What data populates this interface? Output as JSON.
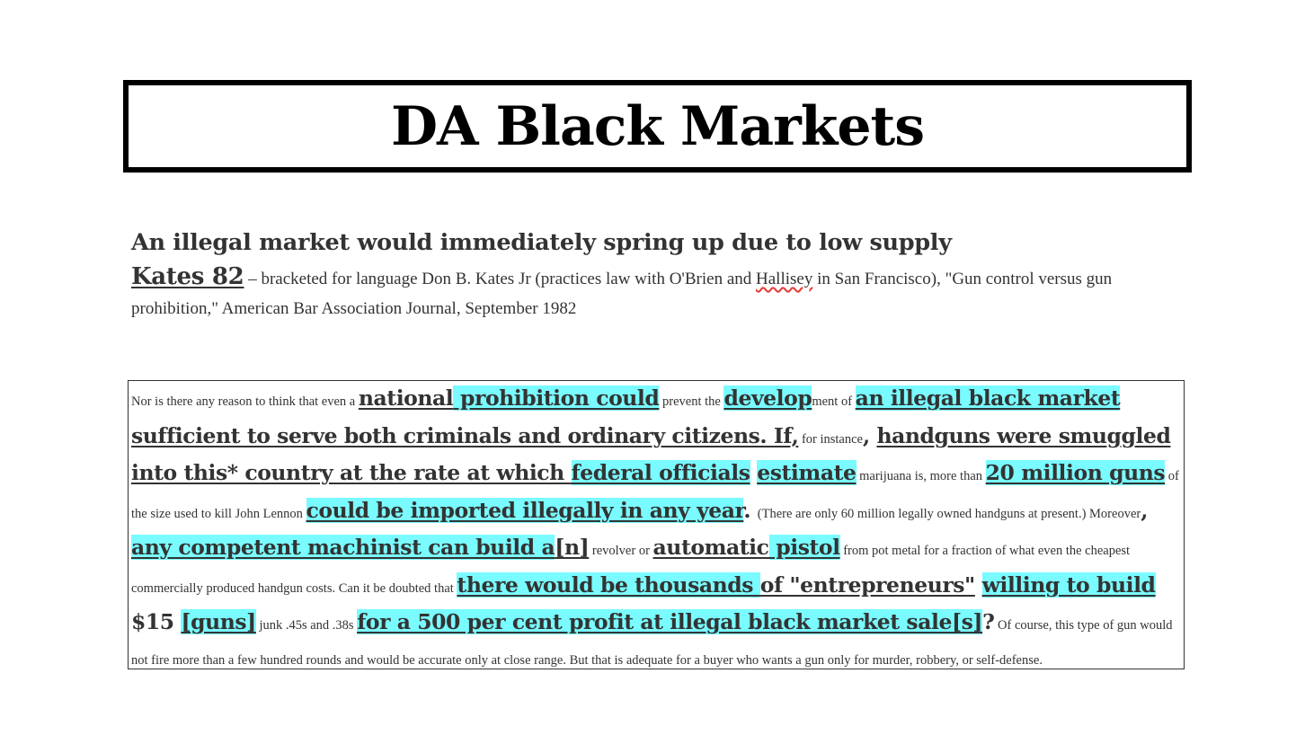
{
  "title": "DA Black Markets",
  "tag": "An illegal market would immediately spring up due to low supply",
  "citation": {
    "name": "Kates 82",
    "pre": " – bracketed for language Don B. Kates Jr (practices law with O'Brien and ",
    "misspelled": "Hallisey",
    "post": " in San Francisco), \"Gun control versus gun prohibition,\" American Bar Association Journal, September 1982"
  },
  "card": {
    "p1": "Nor is there any reason to think that even a ",
    "p2": "national",
    "p3": " prohibition could",
    "p4": " prevent the ",
    "p5": "develop",
    "p6": "ment of ",
    "p7": "an illegal black market ",
    "p8": "sufficient to serve both criminals and ordinary citizens. If,",
    "p9": " for instance",
    "p10": ", ",
    "p11": "handguns were smuggled into this* country at the rate at which ",
    "p12": "federal officials",
    "p13": " ",
    "p14": "estimate",
    "p15": " marijuana is, more than ",
    "p16": "20 million guns",
    "p17": " of the size used to kill John Lennon ",
    "p18": "could be imported illegally in any year",
    "p19": ". ",
    "p20": " (There are only 60 million legally owned handguns at present.) Moreover",
    "p21": ", ",
    "p22": "any competent machinist can build a",
    "p23": "[n]",
    "p24": " revolver or ",
    "p25": "automatic",
    "p26": " pistol",
    "p27": " from pot metal for a fraction of what even the cheapest commercially produced handgun costs. Can it be doubted that ",
    "p28": "there would be thousands ",
    "p29": "of \"entrepreneurs\"",
    "p30": " ",
    "p31": "willing to build ",
    "p32": "$15 ",
    "p33": "[guns]",
    "p34": " junk .45s and .38s ",
    "p35": "for a 500 per cent profit at illegal black market sale[s]",
    "p36": "?",
    "p37": " Of course, this type of gun would not fire more than a few hundred rounds and would be accurate only at close range. But that is adequate for a buyer who wants a gun only for murder, robbery, or self-defense."
  },
  "colors": {
    "highlight": "#79fbff",
    "text": "#333333",
    "border": "#000000"
  }
}
